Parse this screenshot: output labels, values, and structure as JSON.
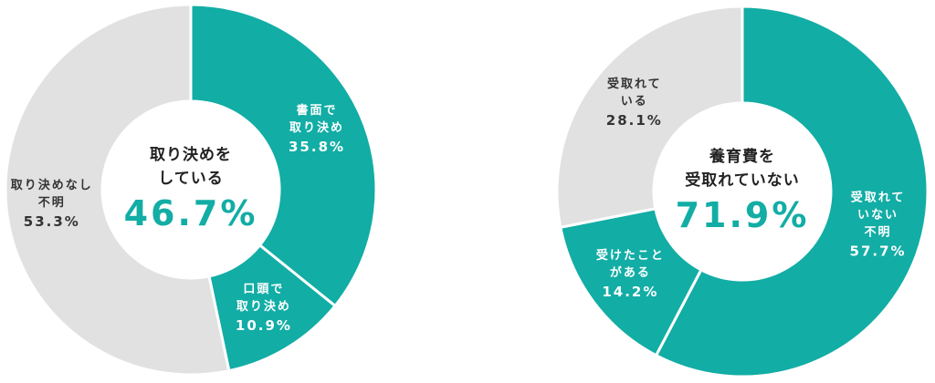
{
  "chart_data": [
    {
      "type": "donut",
      "categories": [
        "書面で\n取り決め",
        "口頭で\n取り決め",
        "取り決めなし\n不明"
      ],
      "values": [
        35.8,
        10.9,
        53.3
      ],
      "value_labels": [
        "35.8%",
        "10.9%",
        "53.3%"
      ],
      "colors": [
        "#12ada5",
        "#12ada5",
        "#e1e1e1"
      ],
      "label_colors": [
        "#ffffff",
        "#ffffff",
        "#333333"
      ],
      "center_label": "取り決めを\nしている",
      "center_value": 46.7,
      "center_value_label": "46.7%"
    },
    {
      "type": "donut",
      "categories": [
        "受取れて\nいない\n不明",
        "受けたこと\nがある",
        "受取れて\nいる"
      ],
      "values": [
        57.7,
        14.2,
        28.1
      ],
      "value_labels": [
        "57.7%",
        "14.2%",
        "28.1%"
      ],
      "colors": [
        "#12ada5",
        "#12ada5",
        "#e1e1e1"
      ],
      "label_colors": [
        "#ffffff",
        "#ffffff",
        "#333333"
      ],
      "center_label": "養育費を\n受取れていない",
      "center_value": 71.9,
      "center_value_label": "71.9%"
    }
  ]
}
